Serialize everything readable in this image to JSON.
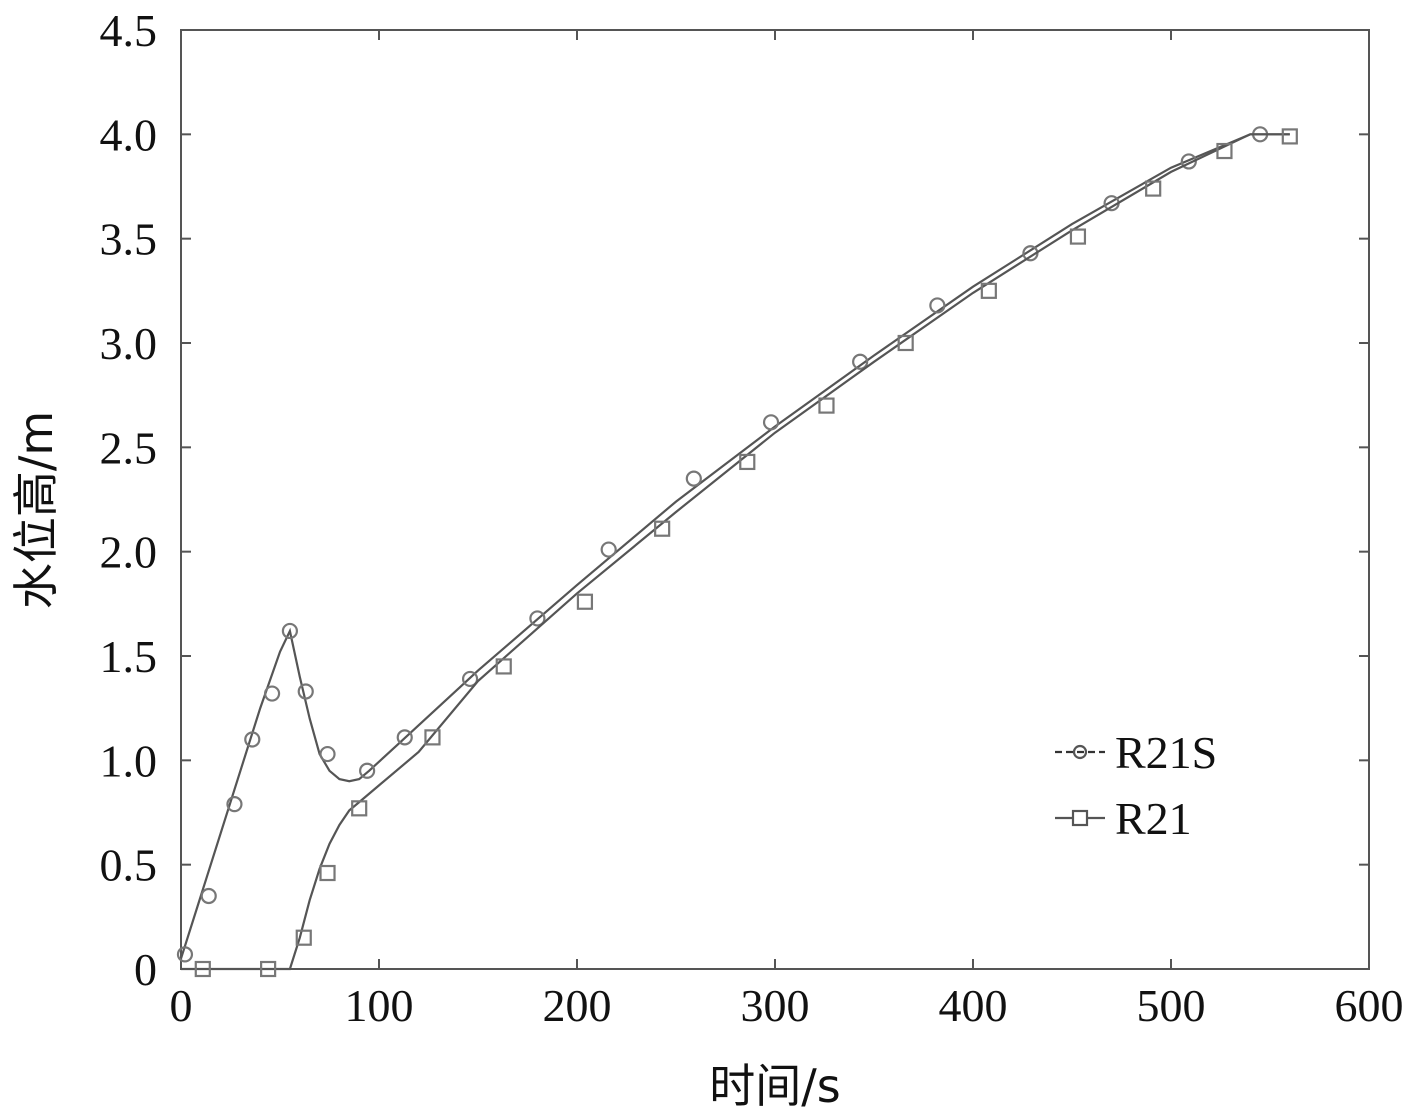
{
  "chart_data": {
    "type": "line",
    "xlabel": "时间/s",
    "ylabel": "水位高/m",
    "xlim": [
      0,
      600
    ],
    "ylim": [
      0,
      4.5
    ],
    "xticks": [
      "0",
      "100",
      "200",
      "300",
      "400",
      "500",
      "600"
    ],
    "yticks": [
      "0",
      "0.5",
      "1.0",
      "1.5",
      "2.0",
      "2.5",
      "3.0",
      "3.5",
      "4.0",
      "4.5"
    ],
    "grid": false,
    "legend_position": "right-middle",
    "series": [
      {
        "name": "R21S",
        "marker": "circle",
        "line_x": [
          0,
          10,
          20,
          30,
          40,
          50,
          55,
          60,
          65,
          70,
          75,
          80,
          85,
          90,
          95,
          110,
          150,
          200,
          250,
          300,
          350,
          400,
          450,
          500,
          540,
          560
        ],
        "line_y": [
          0.05,
          0.35,
          0.65,
          0.95,
          1.25,
          1.52,
          1.62,
          1.4,
          1.2,
          1.03,
          0.95,
          0.91,
          0.9,
          0.91,
          0.95,
          1.08,
          1.43,
          1.84,
          2.24,
          2.6,
          2.94,
          3.27,
          3.57,
          3.84,
          4.0,
          4.0
        ],
        "x": [
          2,
          14,
          27,
          36,
          46,
          55,
          63,
          74,
          94,
          113,
          146,
          180,
          216,
          259,
          298,
          343,
          382,
          429,
          470,
          509,
          545
        ],
        "y": [
          0.07,
          0.35,
          0.79,
          1.1,
          1.32,
          1.62,
          1.33,
          1.03,
          0.95,
          1.11,
          1.39,
          1.68,
          2.01,
          2.35,
          2.62,
          2.91,
          3.18,
          3.43,
          3.67,
          3.87,
          4.0
        ]
      },
      {
        "name": "R21",
        "marker": "square",
        "line_x": [
          0,
          55,
          60,
          65,
          70,
          75,
          80,
          85,
          90,
          100,
          120,
          150,
          200,
          250,
          300,
          350,
          400,
          450,
          500,
          540,
          560
        ],
        "line_y": [
          0,
          0,
          0.15,
          0.33,
          0.48,
          0.6,
          0.69,
          0.76,
          0.8,
          0.88,
          1.04,
          1.38,
          1.8,
          2.19,
          2.57,
          2.91,
          3.24,
          3.54,
          3.82,
          4.0,
          4.0
        ],
        "x": [
          11,
          44,
          62,
          74,
          90,
          127,
          163,
          204,
          243,
          286,
          326,
          366,
          408,
          453,
          491,
          527,
          560
        ],
        "y": [
          0.0,
          0.0,
          0.15,
          0.46,
          0.77,
          1.11,
          1.45,
          1.76,
          2.11,
          2.43,
          2.7,
          3.0,
          3.25,
          3.51,
          3.74,
          3.92,
          3.99
        ]
      }
    ]
  }
}
